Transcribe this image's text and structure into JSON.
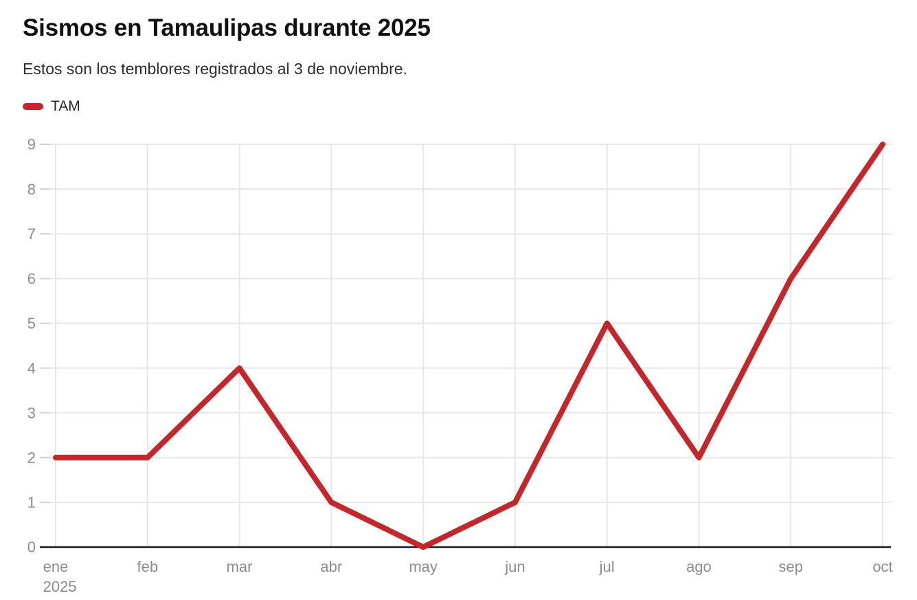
{
  "header": {
    "title": "Sismos en Tamaulipas durante 2025",
    "subtitle": "Estos son los temblores registrados al 3 de noviembre."
  },
  "legend": {
    "label": "TAM"
  },
  "colors": {
    "series": "#c4262a",
    "title": "#111111",
    "subtitle": "#2e2e2e",
    "legend_text": "#262626",
    "axis_label": "#8c8c8c",
    "gridline": "#e7e7e7",
    "tick": "#d2d2d2",
    "baseline": "#1a1a1a"
  },
  "chart_data": {
    "type": "line",
    "title": "Sismos en Tamaulipas durante 2025",
    "subtitle": "Estos son los temblores registrados al 3 de noviembre.",
    "categories": [
      "ene",
      "feb",
      "mar",
      "abr",
      "may",
      "jun",
      "jul",
      "ago",
      "sep",
      "oct"
    ],
    "x_sub_labels": {
      "ene": "2025"
    },
    "series": [
      {
        "name": "TAM",
        "color": "#c4262a",
        "values": [
          2,
          2,
          4,
          1,
          0,
          1,
          5,
          2,
          6,
          9
        ]
      }
    ],
    "xlabel": "",
    "ylabel": "",
    "ylim": [
      0,
      9
    ],
    "yticks": [
      0,
      1,
      2,
      3,
      4,
      5,
      6,
      7,
      8,
      9
    ],
    "grid": true,
    "legend_position": "top-left"
  }
}
